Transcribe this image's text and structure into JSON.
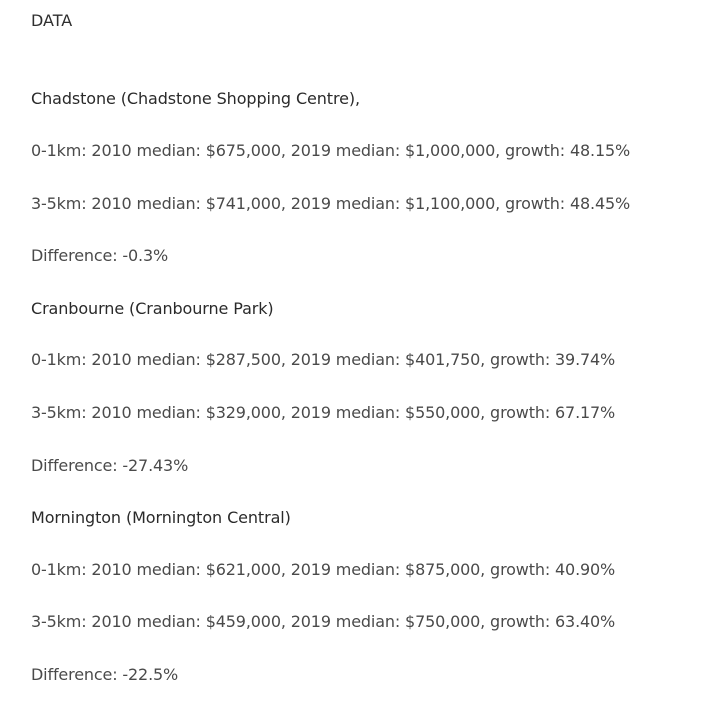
{
  "heading": "DATA",
  "sections": [
    {
      "title": "Chadstone (Chadstone Shopping Centre),",
      "lines": [
        "0-1km: 2010 median: $675,000, 2019 median: $1,000,000, growth: 48.15%",
        "3-5km: 2010 median: $741,000, 2019 median: $1,100,000, growth: 48.45%",
        "Difference: -0.3%"
      ]
    },
    {
      "title": "Cranbourne (Cranbourne Park)",
      "lines": [
        "0-1km: 2010 median: $287,500, 2019 median: $401,750, growth: 39.74%",
        "3-5km: 2010 median: $329,000, 2019 median: $550,000, growth: 67.17%",
        "Difference: -27.43%"
      ]
    },
    {
      "title": "Mornington (Mornington Central)",
      "lines": [
        "0-1km: 2010 median: $621,000, 2019 median: $875,000, growth: 40.90%",
        "3-5km: 2010 median: $459,000, 2019 median: $750,000, growth: 63.40%",
        "Difference: -22.5%"
      ]
    }
  ]
}
